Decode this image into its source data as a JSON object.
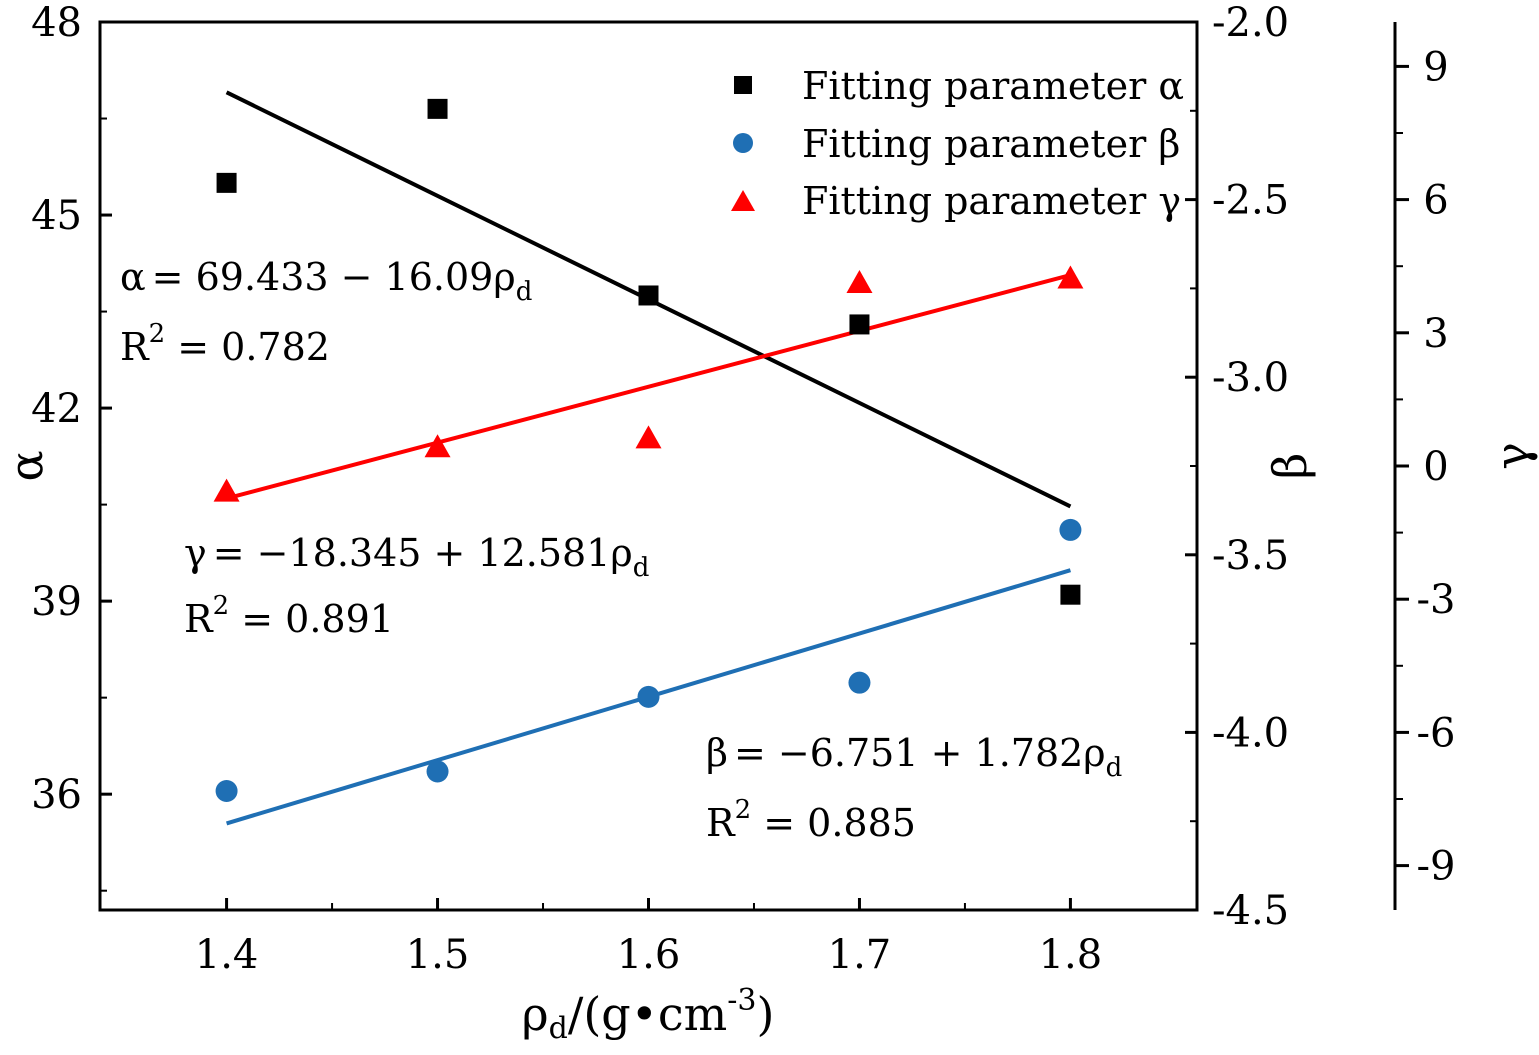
{
  "chart_data": {
    "type": "scatter",
    "xlabel": "ρd/(g•cm⁻³)",
    "xlabel_parts": {
      "main": "ρ",
      "sub": "d",
      "tail": "/(g•cm",
      "sup": "-3",
      "close": ")"
    },
    "x_ticks": [
      "1.4",
      "1.5",
      "1.6",
      "1.7",
      "1.8"
    ],
    "x_tick_values": [
      1.4,
      1.5,
      1.6,
      1.7,
      1.8
    ],
    "xlim": [
      1.34,
      1.86
    ],
    "axes": [
      {
        "id": "alpha",
        "label": "α",
        "side": "left",
        "ylim": [
          34.2,
          48
        ],
        "ticks": [
          36,
          39,
          42,
          45,
          48
        ],
        "tick_labels": [
          "36",
          "39",
          "42",
          "45",
          "48"
        ]
      },
      {
        "id": "beta",
        "label": "β",
        "side": "right-inner",
        "ylim": [
          -4.5,
          -2.0
        ],
        "ticks": [
          -4.5,
          -4.0,
          -3.5,
          -3.0,
          -2.5,
          -2.0
        ],
        "tick_labels": [
          "-4.5",
          "-4.0",
          "-3.5",
          "-3.0",
          "-2.5",
          "-2.0"
        ]
      },
      {
        "id": "gamma",
        "label": "γ",
        "side": "right-outer",
        "ylim": [
          -10,
          10
        ],
        "ticks": [
          -9,
          -6,
          -3,
          0,
          3,
          6,
          9
        ],
        "tick_labels": [
          "-9",
          "-6",
          "-3",
          "0",
          "3",
          "6",
          "9"
        ]
      }
    ],
    "series": [
      {
        "name": "Fitting parameter α",
        "axis": "alpha",
        "marker": "square",
        "color": "#000000",
        "x": [
          1.4,
          1.5,
          1.6,
          1.7,
          1.8
        ],
        "values": [
          45.5,
          46.65,
          43.75,
          43.3,
          39.1
        ],
        "fit": {
          "intercept": 69.433,
          "slope": -16.09,
          "x": [
            1.4,
            1.8
          ]
        }
      },
      {
        "name": "Fitting parameter β",
        "axis": "beta",
        "marker": "circle",
        "color": "#1f6fb4",
        "x": [
          1.4,
          1.5,
          1.6,
          1.7,
          1.8
        ],
        "values": [
          -4.165,
          -4.11,
          -3.9,
          -3.86,
          -3.43
        ],
        "fit": {
          "intercept": -6.751,
          "slope": 1.782,
          "x": [
            1.4,
            1.8
          ]
        }
      },
      {
        "name": "Fitting parameter γ",
        "axis": "gamma",
        "marker": "triangle",
        "color": "#ff0000",
        "x": [
          1.4,
          1.5,
          1.6,
          1.7,
          1.8
        ],
        "values": [
          -0.6,
          0.4,
          0.6,
          4.1,
          4.2
        ],
        "fit": {
          "intercept": -18.345,
          "slope": 12.581,
          "x": [
            1.4,
            1.8
          ]
        }
      }
    ],
    "legend_position": "top-right",
    "annotations": {
      "alpha": {
        "lhs": "α",
        "rhs": "= 69.433 − 16.09ρ",
        "sub": "d",
        "r2_label": "R",
        "r2_sup": "2",
        "r2_value": " = 0.782"
      },
      "gamma": {
        "lhs": "γ",
        "rhs": "= −18.345 + 12.581ρ",
        "sub": "d",
        "r2_label": "R",
        "r2_sup": "2",
        "r2_value": " = 0.891"
      },
      "beta": {
        "lhs": "β",
        "rhs": "= −6.751 + 1.782ρ",
        "sub": "d",
        "r2_label": "R",
        "r2_sup": "2",
        "r2_value": " = 0.885"
      }
    }
  }
}
